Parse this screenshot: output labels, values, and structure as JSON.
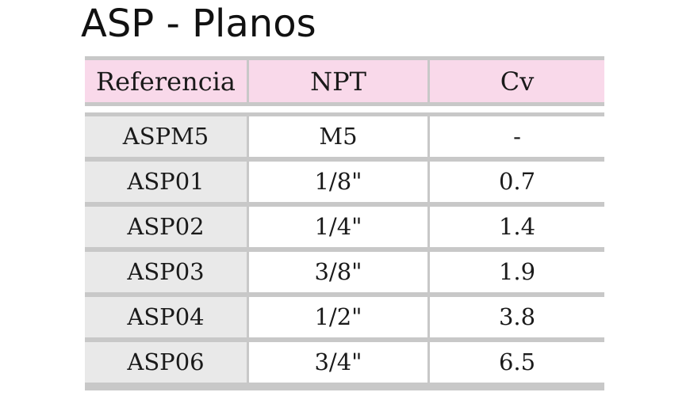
{
  "title": "ASP - Planos",
  "table": {
    "headers": {
      "referencia": "Referencia",
      "npt": "NPT",
      "cv": "Cv"
    },
    "rows": [
      {
        "referencia": "ASPM5",
        "npt": "M5",
        "cv": "-"
      },
      {
        "referencia": "ASP01",
        "npt": "1/8\"",
        "cv": "0.7"
      },
      {
        "referencia": "ASP02",
        "npt": "1/4\"",
        "cv": "1.4"
      },
      {
        "referencia": "ASP03",
        "npt": "3/8\"",
        "cv": "1.9"
      },
      {
        "referencia": "ASP04",
        "npt": "1/2\"",
        "cv": "3.8"
      },
      {
        "referencia": "ASP06",
        "npt": "3/4\"",
        "cv": "6.5"
      }
    ]
  },
  "colors": {
    "header_fill": "#f9d9ea",
    "reference_column_fill": "#e9e9e9",
    "rule_lines": "#c8c8c8"
  }
}
